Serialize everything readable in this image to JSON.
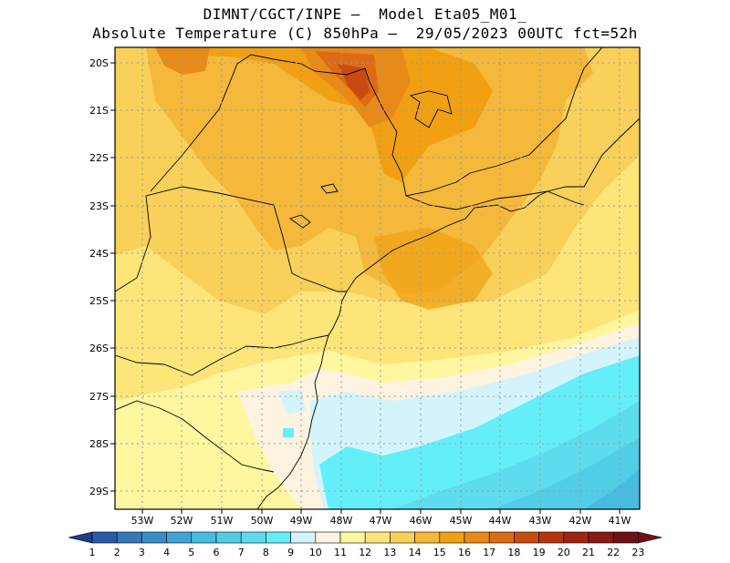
{
  "header": {
    "line1": "DIMNT/CGCT/INPE –  Model Eta05_M01_",
    "line2": "Absolute Temperature (C) 850hPa –  29/05/2023 00UTC fct=52h"
  },
  "map": {
    "lat_labels": [
      "20S",
      "21S",
      "22S",
      "23S",
      "24S",
      "25S",
      "26S",
      "27S",
      "28S",
      "29S"
    ],
    "lon_labels": [
      "53W",
      "52W",
      "51W",
      "50W",
      "49W",
      "48W",
      "47W",
      "46W",
      "45W",
      "44W",
      "43W",
      "42W",
      "41W"
    ],
    "lon_range": [
      53.7,
      40.5
    ],
    "lat_range": [
      19.8,
      29.4
    ],
    "grid": "dotted"
  },
  "colorbar": {
    "labels": [
      "1",
      "2",
      "3",
      "4",
      "5",
      "6",
      "7",
      "8",
      "9",
      "10",
      "11",
      "12",
      "13",
      "14",
      "15",
      "16",
      "17",
      "18",
      "19",
      "20",
      "21",
      "22",
      "23"
    ],
    "colors": [
      "#1e3c8c",
      "#2a5aa8",
      "#3478b8",
      "#3a8ec8",
      "#3ea4d6",
      "#48bce0",
      "#52cde6",
      "#5edcef",
      "#64eefa",
      "#d4f4fb",
      "#fdf3e0",
      "#fff6a0",
      "#fde57a",
      "#f8d05a",
      "#f4b83a",
      "#f0a012",
      "#e88a18",
      "#dd6a14",
      "#c84a10",
      "#b43410",
      "#a02410",
      "#8a1a14",
      "#6e1218"
    ]
  }
}
